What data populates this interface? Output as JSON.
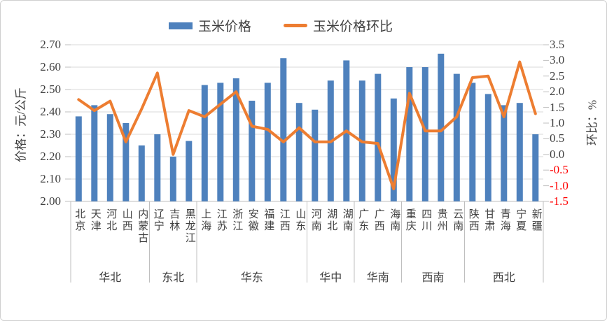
{
  "legend": {
    "bar_label": "玉米价格",
    "line_label": "玉米价格环比"
  },
  "chart_data": {
    "type": "bar+line combo",
    "categories": [
      "北京",
      "天津",
      "河北",
      "山西",
      "内蒙古",
      "辽宁",
      "吉林",
      "黑龙江",
      "上海",
      "江苏",
      "浙江",
      "安徽",
      "福建",
      "江西",
      "山东",
      "河南",
      "湖北",
      "湖南",
      "广东",
      "广西",
      "海南",
      "重庆",
      "四川",
      "贵州",
      "云南",
      "陕西",
      "甘肃",
      "青海",
      "宁夏",
      "新疆"
    ],
    "groups": [
      {
        "label": "华北",
        "count": 5
      },
      {
        "label": "东北",
        "count": 3
      },
      {
        "label": "华东",
        "count": 7
      },
      {
        "label": "华中",
        "count": 3
      },
      {
        "label": "华南",
        "count": 3
      },
      {
        "label": "西南",
        "count": 4
      },
      {
        "label": "西北",
        "count": 5
      }
    ],
    "series": [
      {
        "name": "玉米价格",
        "type": "bar",
        "axis": "left",
        "unit": "元/公斤",
        "color": "#4E81BD",
        "values": [
          2.38,
          2.43,
          2.39,
          2.35,
          2.25,
          2.3,
          2.2,
          2.27,
          2.52,
          2.53,
          2.55,
          2.45,
          2.53,
          2.64,
          2.44,
          2.41,
          2.54,
          2.63,
          2.54,
          2.57,
          2.46,
          2.6,
          2.6,
          2.66,
          2.57,
          2.53,
          2.48,
          2.43,
          2.44,
          2.3
        ]
      },
      {
        "name": "玉米价格环比",
        "type": "line",
        "axis": "right",
        "unit": "%",
        "color": "#ED7D31",
        "values": [
          1.75,
          1.4,
          1.7,
          0.4,
          1.45,
          2.6,
          0.0,
          1.4,
          1.2,
          1.6,
          2.0,
          0.9,
          0.8,
          0.4,
          0.85,
          0.4,
          0.4,
          0.75,
          0.4,
          0.35,
          -1.1,
          1.95,
          0.75,
          0.75,
          1.2,
          2.45,
          2.5,
          1.2,
          2.95,
          1.3
        ]
      }
    ],
    "left_axis": {
      "title": "价格：元/公斤",
      "min": 2.0,
      "max": 2.7,
      "step": 0.1,
      "ticks": [
        {
          "value": 2.7,
          "label": "2.70"
        },
        {
          "value": 2.6,
          "label": "2.60"
        },
        {
          "value": 2.5,
          "label": "2.50"
        },
        {
          "value": 2.4,
          "label": "2.40"
        },
        {
          "value": 2.3,
          "label": "2.30"
        },
        {
          "value": 2.2,
          "label": "2.20"
        },
        {
          "value": 2.1,
          "label": "2.10"
        },
        {
          "value": 2.0,
          "label": "2.00"
        }
      ]
    },
    "right_axis": {
      "title": "环比：%",
      "min": -1.5,
      "max": 3.5,
      "step": 0.5,
      "negative_color": "#FF0000",
      "ticks": [
        {
          "value": 3.5,
          "label": "3.5"
        },
        {
          "value": 3.0,
          "label": "3.0"
        },
        {
          "value": 2.5,
          "label": "2.5"
        },
        {
          "value": 2.0,
          "label": "2.0"
        },
        {
          "value": 1.5,
          "label": "1.5"
        },
        {
          "value": 1.0,
          "label": "1.0"
        },
        {
          "value": 0.5,
          "label": "0.5"
        },
        {
          "value": 0.0,
          "label": "0.0"
        },
        {
          "value": -0.5,
          "label": "-0.5"
        },
        {
          "value": -1.0,
          "label": "-1.0"
        },
        {
          "value": -1.5,
          "label": "-1.5"
        }
      ]
    },
    "grid": true,
    "legend_position": "top-center",
    "colors": {
      "bar": "#4E81BD",
      "line": "#ED7D31",
      "gridline": "#D9D9D9",
      "axis_line": "#BFBFBF",
      "text": "#404040",
      "negative_tick": "#FF0000"
    }
  }
}
